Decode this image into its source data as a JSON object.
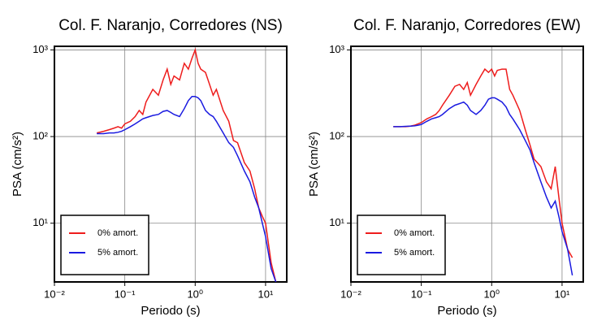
{
  "chart_data": [
    {
      "type": "line",
      "title": "Col. F. Naranjo, Corredores (NS)",
      "x_label": "Periodo (s)",
      "y_label": "PSA (cm/s²)",
      "log_x": true,
      "log_y": true,
      "grid": true,
      "legend": "lower left",
      "xlim": [
        0.01,
        20
      ],
      "ylim": [
        2.1,
        1100
      ],
      "xticks": [
        {
          "value": 0.01,
          "label": "10⁻²"
        },
        {
          "value": 0.1,
          "label": "10⁻¹"
        },
        {
          "value": 1,
          "label": "10⁰"
        },
        {
          "value": 10,
          "label": "10¹"
        }
      ],
      "yticks": [
        {
          "value": 10,
          "label": "10¹"
        },
        {
          "value": 100,
          "label": "10²"
        },
        {
          "value": 1000,
          "label": "10³"
        }
      ],
      "x": [
        0.04,
        0.05,
        0.06,
        0.07,
        0.08,
        0.09,
        0.1,
        0.12,
        0.14,
        0.16,
        0.18,
        0.2,
        0.25,
        0.3,
        0.35,
        0.4,
        0.45,
        0.5,
        0.6,
        0.7,
        0.8,
        0.9,
        1.0,
        1.1,
        1.2,
        1.4,
        1.6,
        1.8,
        2.0,
        2.5,
        3.0,
        3.5,
        4.0,
        5.0,
        6.0,
        7.0,
        8.0,
        9.0,
        10,
        12,
        14
      ],
      "series": [
        {
          "name": "0% amort.",
          "color": "#ee1c1c",
          "values": [
            110,
            115,
            120,
            125,
            130,
            125,
            140,
            150,
            170,
            200,
            180,
            250,
            350,
            300,
            450,
            600,
            400,
            500,
            450,
            700,
            600,
            800,
            1000,
            700,
            600,
            550,
            400,
            300,
            350,
            200,
            150,
            90,
            85,
            50,
            40,
            25,
            15,
            12,
            10,
            3.5,
            2.1
          ]
        },
        {
          "name": "5% amort.",
          "color": "#1a1ae0",
          "values": [
            108,
            108,
            110,
            110,
            112,
            115,
            120,
            130,
            140,
            150,
            160,
            165,
            175,
            180,
            195,
            200,
            190,
            180,
            170,
            210,
            260,
            290,
            290,
            280,
            260,
            200,
            180,
            170,
            150,
            110,
            85,
            75,
            60,
            40,
            30,
            20,
            15,
            10,
            7,
            3,
            2.1
          ]
        }
      ]
    },
    {
      "type": "line",
      "title": "Col. F. Naranjo, Corredores (EW)",
      "x_label": "Periodo (s)",
      "y_label": "PSA (cm/s²)",
      "log_x": true,
      "log_y": true,
      "grid": true,
      "legend": "lower left",
      "xlim": [
        0.01,
        20
      ],
      "ylim": [
        2.1,
        1100
      ],
      "xticks": [
        {
          "value": 0.01,
          "label": "10⁻²"
        },
        {
          "value": 0.1,
          "label": "10⁻¹"
        },
        {
          "value": 1,
          "label": "10⁰"
        },
        {
          "value": 10,
          "label": "10¹"
        }
      ],
      "yticks": [
        {
          "value": 10,
          "label": "10¹"
        },
        {
          "value": 100,
          "label": "10²"
        },
        {
          "value": 1000,
          "label": "10³"
        }
      ],
      "x": [
        0.04,
        0.05,
        0.06,
        0.07,
        0.08,
        0.09,
        0.1,
        0.12,
        0.14,
        0.16,
        0.18,
        0.2,
        0.25,
        0.3,
        0.35,
        0.4,
        0.45,
        0.5,
        0.6,
        0.7,
        0.8,
        0.9,
        1.0,
        1.1,
        1.2,
        1.4,
        1.6,
        1.8,
        2.0,
        2.5,
        3.0,
        3.5,
        4.0,
        5.0,
        6.0,
        7.0,
        8.0,
        9.0,
        10,
        12,
        14
      ],
      "series": [
        {
          "name": "0% amort.",
          "color": "#ee1c1c",
          "values": [
            130,
            130,
            130,
            132,
            135,
            140,
            145,
            160,
            170,
            180,
            200,
            230,
            300,
            380,
            400,
            350,
            420,
            300,
            400,
            500,
            600,
            550,
            600,
            500,
            580,
            600,
            600,
            350,
            300,
            200,
            120,
            80,
            55,
            45,
            30,
            25,
            45,
            20,
            10,
            5,
            4
          ]
        },
        {
          "name": "5% amort.",
          "color": "#1a1ae0",
          "values": [
            130,
            130,
            131,
            132,
            133,
            135,
            138,
            150,
            160,
            165,
            170,
            180,
            210,
            230,
            240,
            250,
            230,
            200,
            180,
            200,
            230,
            270,
            280,
            280,
            270,
            250,
            220,
            180,
            160,
            120,
            90,
            70,
            50,
            30,
            20,
            15,
            18,
            12,
            8,
            5,
            2.5
          ]
        }
      ]
    }
  ]
}
